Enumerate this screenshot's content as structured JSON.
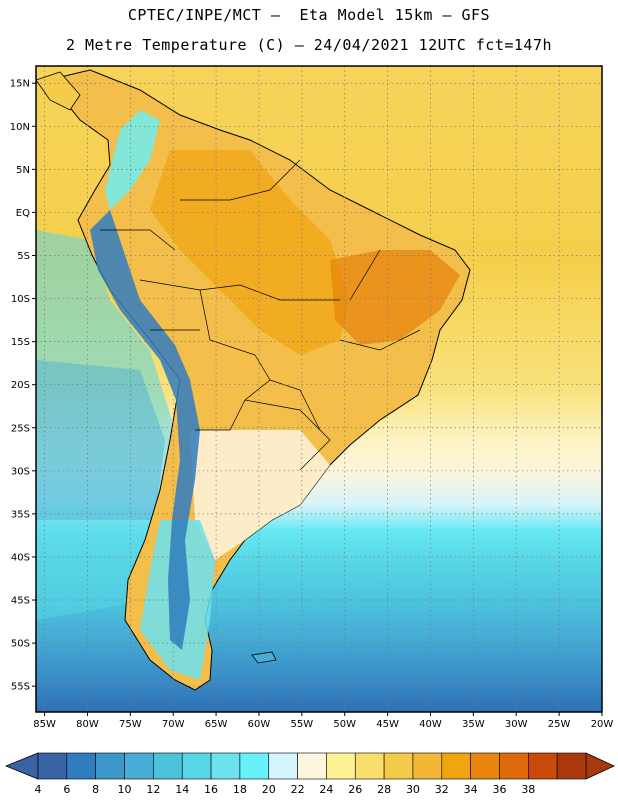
{
  "title": {
    "line1": "CPTEC/INPE/MCT –  Eta Model 15km – GFS",
    "line2": "2 Metre Temperature (C) – 24/04/2021 12UTC fct=147h"
  },
  "map": {
    "lon_range": [
      -86,
      -20
    ],
    "lat_range": [
      -58,
      17
    ],
    "lat_ticks": [
      {
        "value": 15,
        "label": "15N"
      },
      {
        "value": 10,
        "label": "10N"
      },
      {
        "value": 5,
        "label": "5N"
      },
      {
        "value": 0,
        "label": "EQ"
      },
      {
        "value": -5,
        "label": "5S"
      },
      {
        "value": -10,
        "label": "10S"
      },
      {
        "value": -15,
        "label": "15S"
      },
      {
        "value": -20,
        "label": "20S"
      },
      {
        "value": -25,
        "label": "25S"
      },
      {
        "value": -30,
        "label": "30S"
      },
      {
        "value": -35,
        "label": "35S"
      },
      {
        "value": -40,
        "label": "40S"
      },
      {
        "value": -45,
        "label": "45S"
      },
      {
        "value": -50,
        "label": "50S"
      },
      {
        "value": -55,
        "label": "55S"
      }
    ],
    "lon_ticks": [
      {
        "value": -85,
        "label": "85W"
      },
      {
        "value": -80,
        "label": "80W"
      },
      {
        "value": -75,
        "label": "75W"
      },
      {
        "value": -70,
        "label": "70W"
      },
      {
        "value": -65,
        "label": "65W"
      },
      {
        "value": -60,
        "label": "60W"
      },
      {
        "value": -55,
        "label": "55W"
      },
      {
        "value": -50,
        "label": "50W"
      },
      {
        "value": -45,
        "label": "45W"
      },
      {
        "value": -40,
        "label": "40W"
      },
      {
        "value": -35,
        "label": "35W"
      },
      {
        "value": -30,
        "label": "30W"
      },
      {
        "value": -25,
        "label": "25W"
      },
      {
        "value": -20,
        "label": "20W"
      }
    ]
  },
  "colorbar": {
    "labels": [
      "4",
      "6",
      "8",
      "10",
      "12",
      "14",
      "16",
      "18",
      "20",
      "22",
      "24",
      "26",
      "28",
      "30",
      "32",
      "34",
      "36",
      "38"
    ],
    "colors": [
      "#3a63a6",
      "#2f7cc0",
      "#3c97cb",
      "#47add6",
      "#4cc3dd",
      "#57d6e6",
      "#6be2ee",
      "#66f1fb",
      "#d5f4fb",
      "#fdf5dd",
      "#fdf294",
      "#f9de6c",
      "#f5cb4a",
      "#f1b735",
      "#f0a410",
      "#e8850f",
      "#de6a0b",
      "#c9490a",
      "#a9380c"
    ],
    "low_color": "#3a63a6",
    "high_color": "#a9380c"
  }
}
